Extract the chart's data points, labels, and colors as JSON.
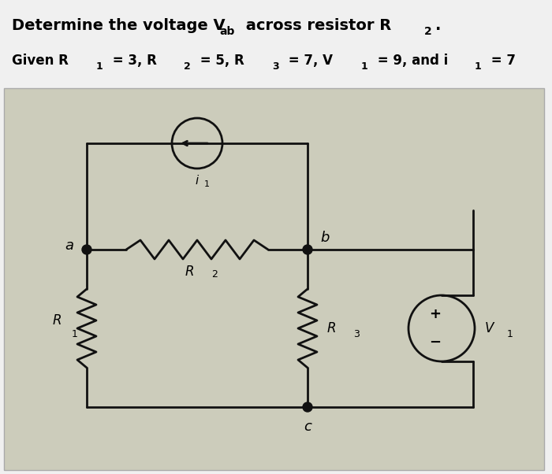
{
  "title_line1": "Determine the voltage V",
  "title_sub_ab": "ab",
  "title_line1_end": " across resistor R",
  "title_sub_2": "2.",
  "given_line": "Given R",
  "bg_color": "#e8e8e8",
  "text_color": "#000000",
  "circuit_bg": "#d4d4c8",
  "figsize": [
    7.0,
    6.02
  ],
  "dpi": 100
}
